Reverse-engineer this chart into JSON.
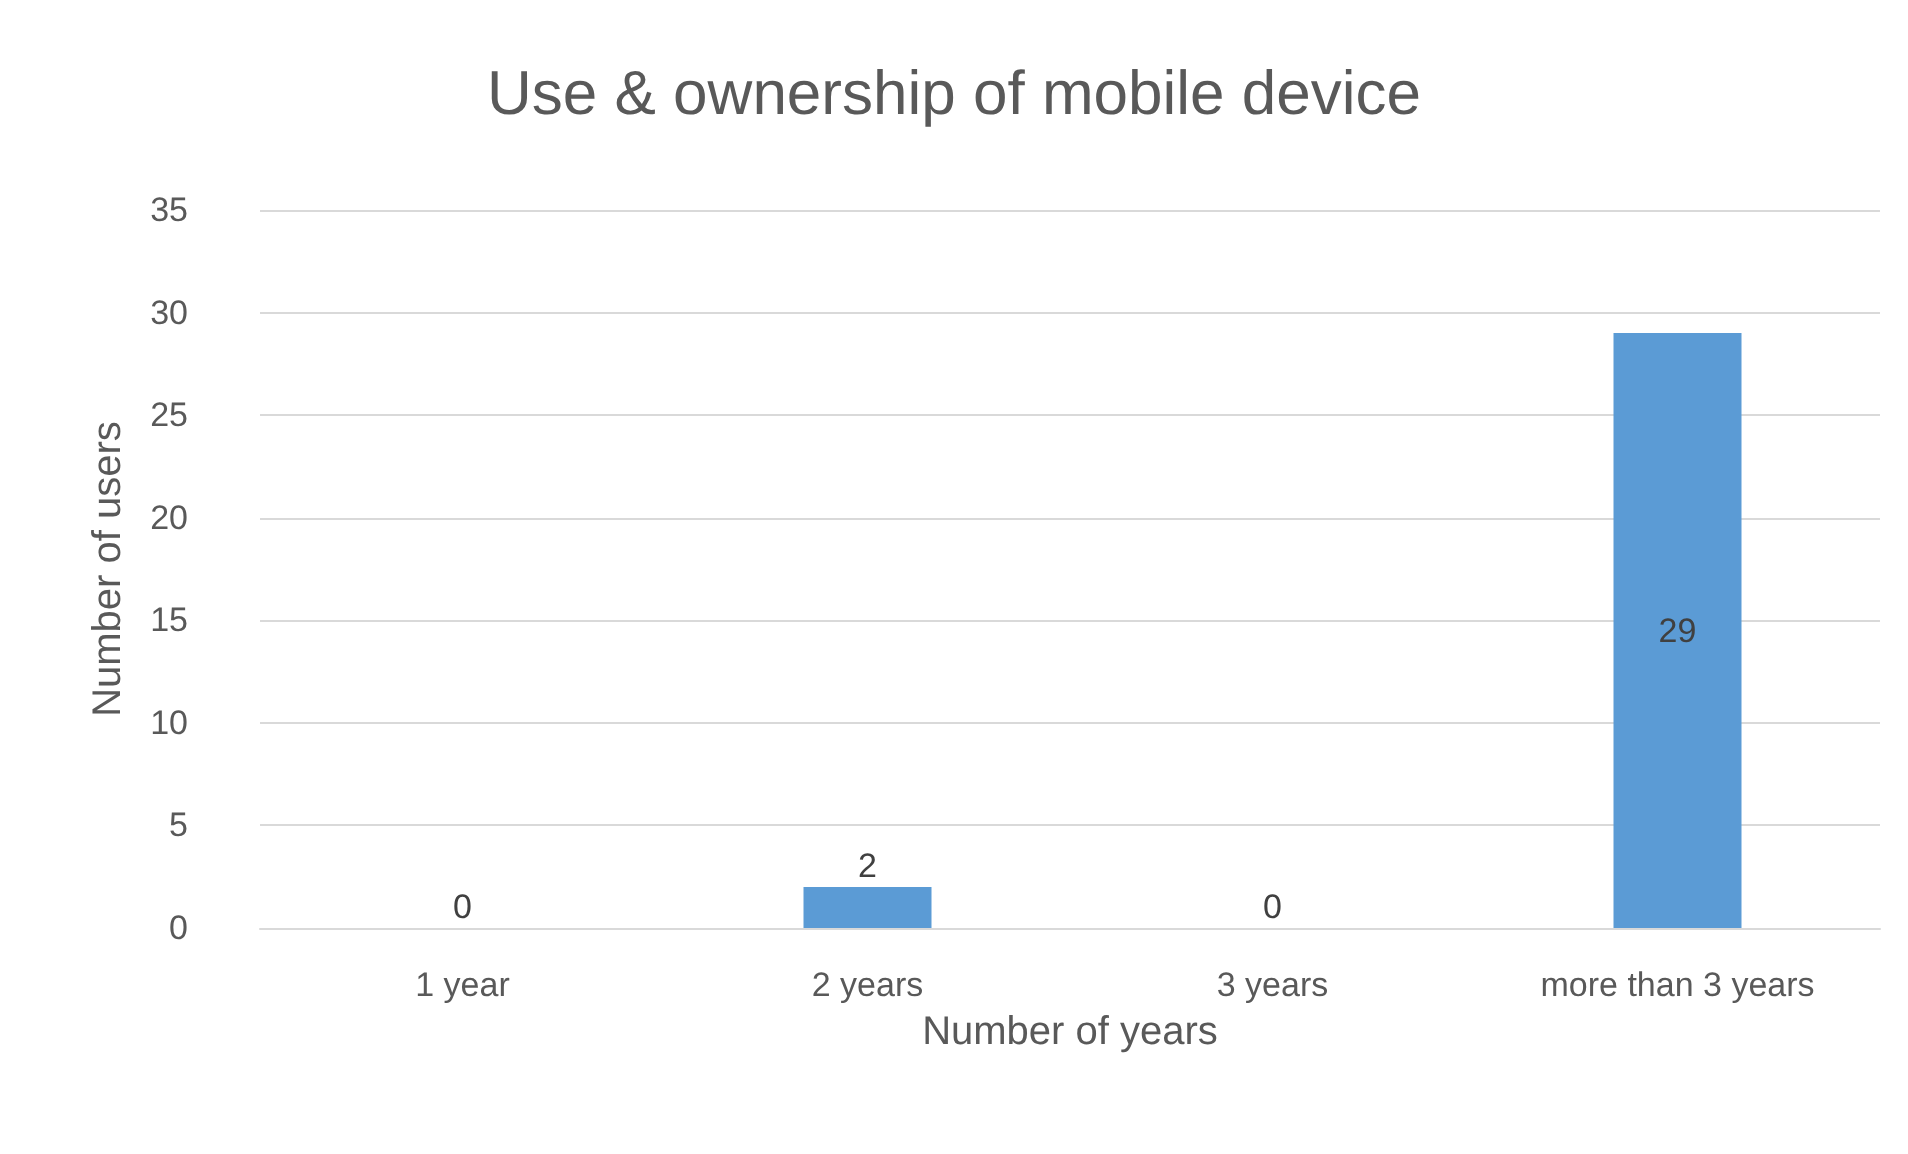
{
  "chart_data": {
    "type": "bar",
    "title": "Use & ownership of mobile device",
    "xlabel": "Number of years",
    "ylabel": "Number of users",
    "categories": [
      "1 year",
      "2 years",
      "3 years",
      "more than 3 years"
    ],
    "values": [
      0,
      2,
      0,
      29
    ],
    "color": "#5b9bd5",
    "ylim": [
      0,
      35
    ],
    "yticks": [
      0,
      5,
      10,
      15,
      20,
      25,
      30,
      35
    ],
    "grid": "y",
    "data_labels": true
  }
}
